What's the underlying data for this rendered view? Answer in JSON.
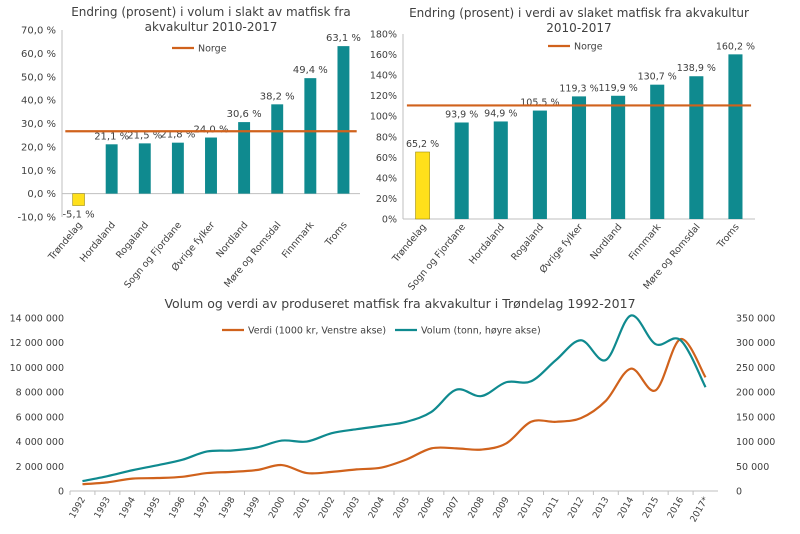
{
  "chart_data": [
    {
      "type": "bar",
      "title_lines": [
        "Endring (prosent) i volum i slakt av matfisk fra",
        "akvakultur 2010-2017"
      ],
      "categories": [
        "Trøndelag",
        "Hordaland",
        "Rogaland",
        "Sogn og Fjordane",
        "Øvrige fylker",
        "Nordland",
        "Møre og Romsdal",
        "Finnmark",
        "Troms"
      ],
      "values": [
        -5.1,
        21.1,
        21.5,
        21.8,
        24.0,
        30.6,
        38.2,
        49.4,
        63.1
      ],
      "value_labels": [
        "-5,1 %",
        "21,1 %",
        "21,5 %",
        "21,8 %",
        "24,0 %",
        "30,6 %",
        "38,2 %",
        "49,4 %",
        "63,1 %"
      ],
      "highlight_index": 0,
      "reference_line": {
        "name": "Norge",
        "value": 26.7
      },
      "ylim": [
        -10,
        70
      ],
      "yticks": [
        -10,
        0,
        10,
        20,
        30,
        40,
        50,
        60,
        70
      ],
      "ytick_labels": [
        "-10,0 %",
        "0,0 %",
        "10,0 %",
        "20,0 %",
        "30,0 %",
        "40,0 %",
        "50,0 %",
        "60,0 %",
        "70,0 %"
      ],
      "legend": "top",
      "colors": {
        "bar": "#0f8a8f",
        "highlight": "#ffe01b",
        "line": "#d0621c"
      }
    },
    {
      "type": "bar",
      "title_lines": [
        "Endring (prosent) i verdi av slaket matfisk fra akvakultur",
        "2010-2017"
      ],
      "categories": [
        "Trøndelag",
        "Sogn og Fjordane",
        "Hordaland",
        "Rogaland",
        "Øvrige fylker",
        "Nordland",
        "Finnmark",
        "Møre og Romsdal",
        "Troms"
      ],
      "values": [
        65.2,
        93.9,
        94.9,
        105.5,
        119.3,
        119.9,
        130.7,
        138.9,
        160.2
      ],
      "value_labels": [
        "65,2 %",
        "93,9 %",
        "94,9 %",
        "105,5 %",
        "119,3 %",
        "119,9 %",
        "130,7 %",
        "138,9 %",
        "160,2 %"
      ],
      "highlight_index": 0,
      "reference_line": {
        "name": "Norge",
        "value": 110.5
      },
      "ylim": [
        0,
        180
      ],
      "yticks": [
        0,
        20,
        40,
        60,
        80,
        100,
        120,
        140,
        160,
        180
      ],
      "ytick_labels": [
        "0%",
        "20%",
        "40%",
        "60%",
        "80%",
        "100%",
        "120%",
        "140%",
        "160%",
        "180%"
      ],
      "legend": "top",
      "colors": {
        "bar": "#0f8a8f",
        "highlight": "#ffe01b",
        "line": "#d0621c"
      }
    },
    {
      "type": "line",
      "title": "Volum og verdi av produseret matfisk fra akvakultur i Trøndelag 1992-2017",
      "x": [
        "1992",
        "1993",
        "1994",
        "1995",
        "1996",
        "1997",
        "1998",
        "1999",
        "2000",
        "2001",
        "2002",
        "2003",
        "2004",
        "2005",
        "2006",
        "2007",
        "2008",
        "2009",
        "2010",
        "2011",
        "2012",
        "2013",
        "2014",
        "2015",
        "2016",
        "2017*"
      ],
      "series": [
        {
          "name": "Verdi (1000 kr, Venstre akse)",
          "axis": "left",
          "color": "#d0621c",
          "values": [
            550000,
            700000,
            1000000,
            1050000,
            1150000,
            1450000,
            1550000,
            1700000,
            2100000,
            1450000,
            1550000,
            1750000,
            1900000,
            2550000,
            3450000,
            3450000,
            3350000,
            3850000,
            5600000,
            5600000,
            5900000,
            7300000,
            9900000,
            8150000,
            12300000,
            9200000
          ]
        },
        {
          "name": "Volum (tonn, høyre akse)",
          "axis": "right",
          "color": "#0f8a8f",
          "values": [
            20000,
            30000,
            42000,
            52000,
            63000,
            80000,
            82000,
            88000,
            102000,
            100000,
            117000,
            125000,
            132000,
            140000,
            160000,
            205000,
            192000,
            220000,
            222000,
            265000,
            305000,
            265000,
            355000,
            297000,
            305000,
            210000
          ]
        }
      ],
      "y_left": {
        "ylim": [
          0,
          14000000
        ],
        "ticks": [
          0,
          2000000,
          4000000,
          6000000,
          8000000,
          10000000,
          12000000,
          14000000
        ],
        "tick_labels": [
          "0",
          "2 000 000",
          "4 000 000",
          "6 000 000",
          "8 000 000",
          "10 000 000",
          "12 000 000",
          "14 000 000"
        ]
      },
      "y_right": {
        "ylim": [
          0,
          350000
        ],
        "ticks": [
          0,
          50000,
          100000,
          150000,
          200000,
          250000,
          300000,
          350000
        ],
        "tick_labels": [
          "0",
          "50 000",
          "100 000",
          "150 000",
          "200 000",
          "250 000",
          "300 000",
          "350 000"
        ]
      },
      "legend": "top-left"
    }
  ]
}
